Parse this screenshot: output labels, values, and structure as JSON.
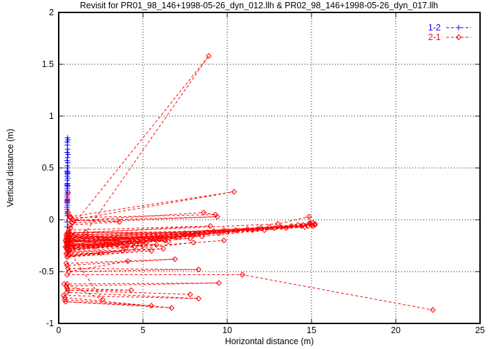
{
  "chart_data": {
    "type": "line",
    "title": "Revisit for PR01_98_146+1998-05-26_dyn_012.llh & PR02_98_146+1998-05-26_dyn_017.llh",
    "xlabel": "Horizontal distance (m)",
    "ylabel": "Vertical distance (m)",
    "xlim": [
      0,
      25
    ],
    "ylim": [
      -1,
      2
    ],
    "xticks": [
      {
        "v": 0,
        "label": "0"
      },
      {
        "v": 5,
        "label": "5"
      },
      {
        "v": 10,
        "label": "10"
      },
      {
        "v": 15,
        "label": "15"
      },
      {
        "v": 20,
        "label": "20"
      },
      {
        "v": 25,
        "label": "25"
      }
    ],
    "yticks": [
      {
        "v": 2,
        "label": "2"
      },
      {
        "v": 1.5,
        "label": "1.5"
      },
      {
        "v": 1,
        "label": "1"
      },
      {
        "v": 0.5,
        "label": "0.5"
      },
      {
        "v": 0,
        "label": "0"
      },
      {
        "v": -0.5,
        "label": "-0.5"
      },
      {
        "v": -1,
        "label": "-1"
      }
    ],
    "grid": true,
    "background": "#ffffff",
    "axis_color": "#000000",
    "legend_position": "top-right-inside",
    "series": [
      {
        "name": "1-2",
        "color": "#0000ff",
        "marker": "plus",
        "linestyle": "dashed",
        "paths": [
          [
            [
              0.52,
              0.79
            ],
            [
              0.5,
              0.75
            ],
            [
              0.55,
              0.77
            ],
            [
              0.51,
              0.72
            ],
            [
              0.53,
              0.68
            ],
            [
              0.5,
              0.65
            ],
            [
              0.55,
              0.63
            ],
            [
              0.52,
              0.6
            ],
            [
              0.5,
              0.57
            ],
            [
              0.53,
              0.55
            ],
            [
              0.51,
              0.52
            ],
            [
              0.54,
              0.5
            ],
            [
              0.5,
              0.47
            ],
            [
              0.52,
              0.46
            ],
            [
              0.53,
              0.45
            ],
            [
              0.51,
              0.45
            ],
            [
              0.52,
              0.44
            ],
            [
              0.5,
              0.42
            ],
            [
              0.53,
              0.4
            ],
            [
              0.51,
              0.38
            ],
            [
              0.52,
              0.35
            ],
            [
              0.5,
              0.34
            ],
            [
              0.53,
              0.33
            ],
            [
              0.51,
              0.33
            ],
            [
              0.52,
              0.32
            ],
            [
              0.5,
              0.3
            ],
            [
              0.51,
              0.28
            ],
            [
              0.52,
              0.26
            ],
            [
              0.5,
              0.24
            ],
            [
              0.51,
              0.22
            ],
            [
              0.52,
              0.2
            ],
            [
              0.5,
              0.19
            ],
            [
              0.51,
              0.19
            ],
            [
              0.52,
              0.18
            ],
            [
              0.5,
              0.17
            ],
            [
              0.51,
              0.16
            ],
            [
              0.52,
              0.14
            ],
            [
              0.5,
              0.12
            ],
            [
              0.51,
              0.1
            ],
            [
              0.52,
              0.08
            ],
            [
              0.5,
              0.06
            ],
            [
              0.51,
              0.04
            ],
            [
              0.5,
              -0.02
            ],
            [
              0.51,
              -0.07
            ]
          ]
        ]
      },
      {
        "name": "2-1",
        "color": "#ff0000",
        "marker": "diamond",
        "linestyle": "dashed",
        "paths": [
          [
            [
              0.5,
              -0.22
            ],
            [
              12.5,
              -0.07
            ],
            [
              0.6,
              -0.18
            ],
            [
              13.8,
              -0.06
            ],
            [
              0.7,
              -0.25
            ],
            [
              14.9,
              -0.04
            ]
          ],
          [
            [
              0.45,
              -0.15
            ],
            [
              9.8,
              -0.1
            ],
            [
              0.55,
              -0.28
            ],
            [
              11.2,
              -0.09
            ],
            [
              0.5,
              -0.2
            ],
            [
              14.5,
              -0.05
            ]
          ],
          [
            [
              0.6,
              -0.12
            ],
            [
              7.5,
              -0.13
            ],
            [
              0.5,
              -0.24
            ],
            [
              8.8,
              -0.12
            ],
            [
              0.65,
              -0.3
            ],
            [
              12.0,
              -0.08
            ],
            [
              15.1,
              -0.03
            ]
          ],
          [
            [
              0.4,
              -0.26
            ],
            [
              5.5,
              -0.18
            ],
            [
              0.5,
              -0.16
            ],
            [
              6.8,
              -0.16
            ],
            [
              0.6,
              -0.22
            ],
            [
              10.5,
              -0.1
            ],
            [
              14.8,
              -0.06
            ]
          ],
          [
            [
              0.55,
              -0.19
            ],
            [
              4.2,
              -0.21
            ],
            [
              0.45,
              -0.27
            ],
            [
              6.0,
              -0.19
            ],
            [
              0.7,
              -0.14
            ],
            [
              8.2,
              -0.14
            ],
            [
              13.2,
              -0.07
            ]
          ],
          [
            [
              0.5,
              -0.23
            ],
            [
              3.5,
              -0.24
            ],
            [
              0.6,
              -0.29
            ],
            [
              5.2,
              -0.22
            ],
            [
              0.55,
              -0.17
            ],
            [
              7.0,
              -0.17
            ],
            [
              11.8,
              -0.09
            ],
            [
              15.0,
              -0.05
            ]
          ],
          [
            [
              0.65,
              -0.21
            ],
            [
              2.8,
              -0.2
            ],
            [
              0.5,
              -0.25
            ],
            [
              4.8,
              -0.23
            ],
            [
              0.6,
              -0.13
            ],
            [
              9.2,
              -0.11
            ],
            [
              14.2,
              -0.05
            ]
          ],
          [
            [
              0.45,
              -0.18
            ],
            [
              6.3,
              -0.2
            ],
            [
              0.55,
              -0.26
            ],
            [
              8.0,
              -0.15
            ],
            [
              0.5,
              -0.21
            ],
            [
              12.8,
              -0.08
            ],
            [
              15.2,
              -0.04
            ]
          ],
          [
            [
              0.6,
              -0.24
            ],
            [
              5.0,
              -0.25
            ],
            [
              0.7,
              -0.19
            ],
            [
              7.8,
              -0.18
            ],
            [
              0.5,
              -0.28
            ],
            [
              10.0,
              -0.12
            ],
            [
              14.6,
              -0.07
            ]
          ],
          [
            [
              0.5,
              -0.27
            ],
            [
              4.5,
              -0.26
            ],
            [
              0.6,
              -0.2
            ],
            [
              6.5,
              -0.21
            ],
            [
              0.55,
              -0.15
            ],
            [
              11.5,
              -0.1
            ],
            [
              15.1,
              -0.06
            ]
          ],
          [
            [
              0.4,
              -0.2
            ],
            [
              3.0,
              -0.22
            ],
            [
              0.5,
              -0.29
            ],
            [
              5.8,
              -0.24
            ],
            [
              0.65,
              -0.16
            ],
            [
              9.5,
              -0.13
            ],
            [
              13.5,
              -0.08
            ],
            [
              15.2,
              -0.05
            ]
          ],
          [
            [
              0.55,
              -0.25
            ],
            [
              2.2,
              -0.26
            ],
            [
              0.45,
              -0.22
            ],
            [
              4.0,
              -0.27
            ],
            [
              0.6,
              -0.18
            ],
            [
              8.5,
              -0.16
            ],
            [
              12.2,
              -0.1
            ],
            [
              14.4,
              -0.06
            ]
          ],
          [
            [
              0.6,
              -0.1
            ],
            [
              9.0,
              -0.06
            ],
            [
              0.5,
              -0.13
            ],
            [
              13.0,
              -0.04
            ],
            [
              14.85,
              0.03
            ],
            [
              14.9,
              -0.03
            ]
          ],
          [
            [
              0.5,
              -0.32
            ],
            [
              3.8,
              -0.3
            ],
            [
              0.6,
              -0.34
            ],
            [
              6.2,
              -0.28
            ],
            [
              0.55,
              -0.31
            ],
            [
              9.8,
              -0.2
            ]
          ],
          [
            [
              0.45,
              -0.33
            ],
            [
              2.5,
              -0.32
            ],
            [
              0.55,
              -0.35
            ],
            [
              5.5,
              -0.3
            ],
            [
              0.5,
              -0.36
            ],
            [
              8.0,
              -0.22
            ]
          ],
          [
            [
              0.7,
              -0.08
            ],
            [
              8.9,
              1.58
            ],
            [
              1.6,
              -0.12
            ]
          ],
          [
            [
              0.55,
              0.26
            ],
            [
              0.5,
              0.19
            ],
            [
              0.55,
              0.07
            ],
            [
              0.7,
              0.03
            ],
            [
              10.4,
              0.27
            ],
            [
              0.85,
              0.0
            ]
          ],
          [
            [
              0.7,
              0.02
            ],
            [
              9.3,
              0.05
            ],
            [
              8.6,
              0.07
            ],
            [
              0.9,
              -0.01
            ],
            [
              9.4,
              0.03
            ],
            [
              0.8,
              -0.03
            ]
          ],
          [
            [
              0.6,
              0.0
            ],
            [
              3.6,
              -0.02
            ],
            [
              0.7,
              -0.05
            ]
          ],
          [
            [
              0.45,
              -0.42
            ],
            [
              6.9,
              -0.38
            ],
            [
              0.5,
              -0.44
            ]
          ],
          [
            [
              0.55,
              -0.47
            ],
            [
              8.3,
              -0.48
            ],
            [
              0.6,
              -0.5
            ],
            [
              4.1,
              -0.4
            ]
          ],
          [
            [
              0.6,
              -0.3
            ],
            [
              2.6,
              -0.77
            ],
            [
              0.5,
              -0.62
            ]
          ],
          [
            [
              0.5,
              -0.53
            ],
            [
              10.9,
              -0.53
            ],
            [
              22.2,
              -0.87
            ]
          ],
          [
            [
              0.33,
              -0.62
            ],
            [
              9.5,
              -0.61
            ],
            [
              0.45,
              -0.64
            ]
          ],
          [
            [
              0.29,
              -0.73
            ],
            [
              8.3,
              -0.76
            ],
            [
              0.5,
              -0.7
            ]
          ],
          [
            [
              0.37,
              -0.75
            ],
            [
              6.7,
              -0.85
            ],
            [
              0.41,
              -0.79
            ],
            [
              5.5,
              -0.83
            ],
            [
              0.35,
              -0.77
            ]
          ],
          [
            [
              0.5,
              -0.66
            ],
            [
              4.3,
              -0.68
            ],
            [
              0.55,
              -0.68
            ],
            [
              7.8,
              -0.72
            ]
          ]
        ]
      }
    ]
  }
}
